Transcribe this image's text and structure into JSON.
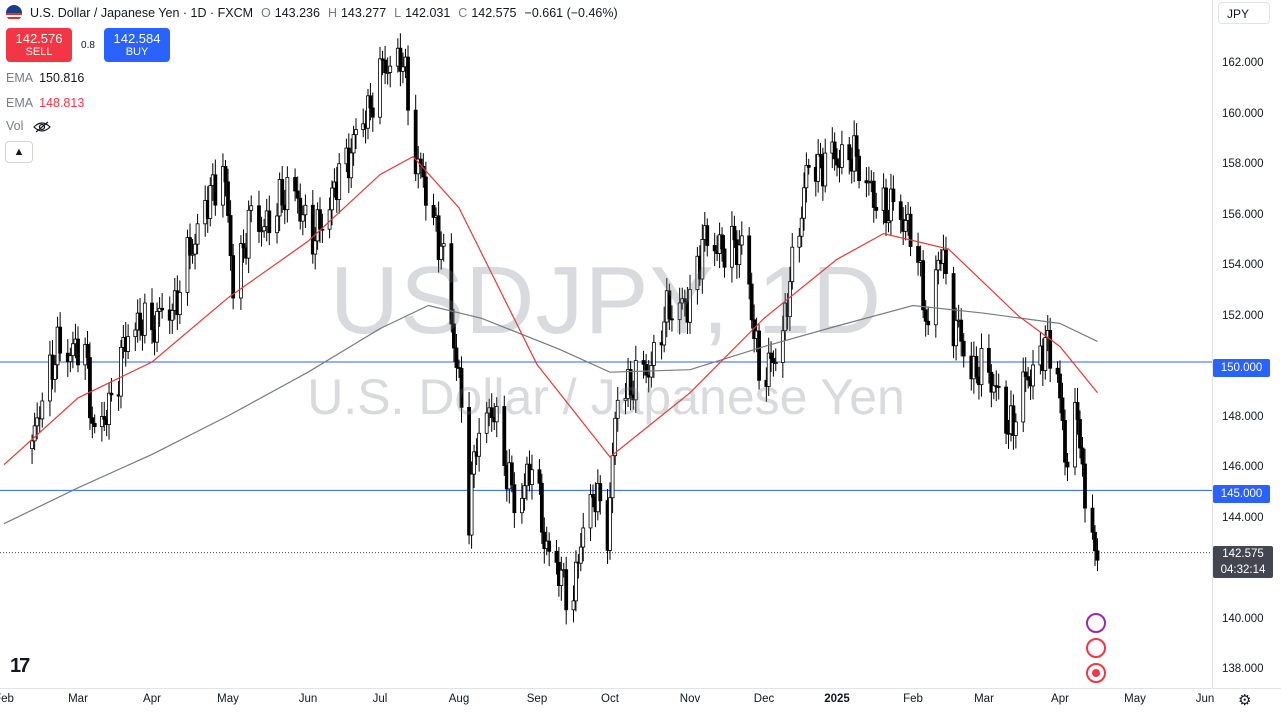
{
  "header": {
    "symbol": "U.S. Dollar / Japanese Yen · 1D · FXCM",
    "open_label": "O",
    "open": "143.236",
    "high_label": "H",
    "high": "143.277",
    "low_label": "L",
    "low": "142.031",
    "close_label": "C",
    "close": "142.575",
    "change": "−0.661 (−0.46%)"
  },
  "trade": {
    "sell_price": "142.576",
    "sell_label": "SELL",
    "buy_price": "142.584",
    "buy_label": "BUY",
    "spread": "0.8"
  },
  "indicators": [
    {
      "name": "EMA",
      "value": "150.816",
      "color": "#131722"
    },
    {
      "name": "EMA",
      "value": "148.813",
      "color": "#f23645"
    },
    {
      "name": "Vol",
      "value": ""
    }
  ],
  "currency": "JPY",
  "watermark": {
    "line1": "USDJPY, 1D",
    "line2": "U.S. Dollar / Japanese Yen"
  },
  "price_tags": {
    "hline1": "150.000",
    "hline2": "145.000",
    "last_price": "142.575",
    "countdown": "04:32:14"
  },
  "chart_data": {
    "type": "candlestick",
    "title": "USDJPY, 1D",
    "y_ticks": [
      "162.000",
      "160.000",
      "158.000",
      "156.000",
      "154.000",
      "152.000",
      "148.000",
      "146.000",
      "144.000",
      "140.000",
      "138.000"
    ],
    "x_ticks": [
      "Feb",
      "Mar",
      "Apr",
      "May",
      "Jun",
      "Jul",
      "Aug",
      "Sep",
      "Oct",
      "Nov",
      "Dec",
      "2025",
      "Feb",
      "Mar",
      "Apr",
      "May",
      "Jun"
    ],
    "ylim": [
      137.3,
      164.1
    ],
    "horizontal_lines": [
      150.0,
      145.0
    ],
    "last_price": 142.575,
    "price_path": [
      {
        "x": "2024-02-12",
        "y": 146.6
      },
      {
        "x": "2024-02-17",
        "y": 149.2
      },
      {
        "x": "2024-02-22",
        "y": 150.4
      },
      {
        "x": "2024-02-28",
        "y": 150.5
      },
      {
        "x": "2024-03-04",
        "y": 150.4
      },
      {
        "x": "2024-03-08",
        "y": 147.0
      },
      {
        "x": "2024-03-12",
        "y": 147.8
      },
      {
        "x": "2024-03-18",
        "y": 149.5
      },
      {
        "x": "2024-03-22",
        "y": 151.3
      },
      {
        "x": "2024-04-01",
        "y": 151.5
      },
      {
        "x": "2024-04-10",
        "y": 152.2
      },
      {
        "x": "2024-04-17",
        "y": 154.6
      },
      {
        "x": "2024-04-29",
        "y": 157.8
      },
      {
        "x": "2024-05-03",
        "y": 153.0
      },
      {
        "x": "2024-05-10",
        "y": 155.6
      },
      {
        "x": "2024-05-17",
        "y": 155.3
      },
      {
        "x": "2024-05-24",
        "y": 156.9
      },
      {
        "x": "2024-06-04",
        "y": 154.8
      },
      {
        "x": "2024-06-14",
        "y": 157.2
      },
      {
        "x": "2024-06-26",
        "y": 159.8
      },
      {
        "x": "2024-07-03",
        "y": 161.6
      },
      {
        "x": "2024-07-10",
        "y": 161.7
      },
      {
        "x": "2024-07-15",
        "y": 158.0
      },
      {
        "x": "2024-07-25",
        "y": 154.5
      },
      {
        "x": "2024-08-01",
        "y": 149.4
      },
      {
        "x": "2024-08-05",
        "y": 143.9
      },
      {
        "x": "2024-08-08",
        "y": 147.2
      },
      {
        "x": "2024-08-15",
        "y": 148.1
      },
      {
        "x": "2024-08-23",
        "y": 144.4
      },
      {
        "x": "2024-08-30",
        "y": 145.9
      },
      {
        "x": "2024-09-06",
        "y": 142.3
      },
      {
        "x": "2024-09-11",
        "y": 141.7
      },
      {
        "x": "2024-09-16",
        "y": 140.6
      },
      {
        "x": "2024-09-20",
        "y": 143.9
      },
      {
        "x": "2024-09-25",
        "y": 144.8
      },
      {
        "x": "2024-09-30",
        "y": 143.5
      },
      {
        "x": "2024-10-04",
        "y": 148.7
      },
      {
        "x": "2024-10-10",
        "y": 149.2
      },
      {
        "x": "2024-10-17",
        "y": 149.9
      },
      {
        "x": "2024-10-24",
        "y": 152.2
      },
      {
        "x": "2024-10-31",
        "y": 152.1
      },
      {
        "x": "2024-11-06",
        "y": 154.6
      },
      {
        "x": "2024-11-12",
        "y": 154.6
      },
      {
        "x": "2024-11-15",
        "y": 154.3
      },
      {
        "x": "2024-11-22",
        "y": 154.7
      },
      {
        "x": "2024-11-29",
        "y": 149.8
      },
      {
        "x": "2024-12-03",
        "y": 149.6
      },
      {
        "x": "2024-12-09",
        "y": 151.2
      },
      {
        "x": "2024-12-13",
        "y": 153.6
      },
      {
        "x": "2024-12-19",
        "y": 157.3
      },
      {
        "x": "2024-12-27",
        "y": 157.9
      },
      {
        "x": "2025-01-07",
        "y": 158.0
      },
      {
        "x": "2025-01-10",
        "y": 157.8
      },
      {
        "x": "2025-01-17",
        "y": 156.1
      },
      {
        "x": "2025-01-24",
        "y": 156.0
      },
      {
        "x": "2025-01-31",
        "y": 155.2
      },
      {
        "x": "2025-02-05",
        "y": 152.6
      },
      {
        "x": "2025-02-07",
        "y": 151.4
      },
      {
        "x": "2025-02-12",
        "y": 154.4
      },
      {
        "x": "2025-02-17",
        "y": 151.6
      },
      {
        "x": "2025-02-24",
        "y": 149.7
      },
      {
        "x": "2025-03-04",
        "y": 149.5
      },
      {
        "x": "2025-03-11",
        "y": 147.3
      },
      {
        "x": "2025-03-18",
        "y": 149.2
      },
      {
        "x": "2025-03-26",
        "y": 150.6
      },
      {
        "x": "2025-03-31",
        "y": 149.9
      },
      {
        "x": "2025-04-03",
        "y": 146.0
      },
      {
        "x": "2025-04-07",
        "y": 147.8
      },
      {
        "x": "2025-04-09",
        "y": 147.6
      },
      {
        "x": "2025-04-11",
        "y": 143.8
      },
      {
        "x": "2025-04-14",
        "y": 143.3
      },
      {
        "x": "2025-04-16",
        "y": 142.6
      }
    ],
    "ema_200": [
      {
        "x": "2024-02-01",
        "y": 143.7
      },
      {
        "x": "2024-03-01",
        "y": 145.1
      },
      {
        "x": "2024-04-01",
        "y": 146.4
      },
      {
        "x": "2024-05-01",
        "y": 147.9
      },
      {
        "x": "2024-06-01",
        "y": 149.6
      },
      {
        "x": "2024-07-01",
        "y": 151.3
      },
      {
        "x": "2024-07-20",
        "y": 152.2
      },
      {
        "x": "2024-08-10",
        "y": 151.7
      },
      {
        "x": "2024-09-10",
        "y": 150.5
      },
      {
        "x": "2024-10-01",
        "y": 149.6
      },
      {
        "x": "2024-11-01",
        "y": 149.7
      },
      {
        "x": "2024-12-01",
        "y": 150.6
      },
      {
        "x": "2025-01-01",
        "y": 151.4
      },
      {
        "x": "2025-02-01",
        "y": 152.2
      },
      {
        "x": "2025-03-01",
        "y": 151.9
      },
      {
        "x": "2025-04-01",
        "y": 151.5
      },
      {
        "x": "2025-04-16",
        "y": 150.8
      }
    ],
    "ema_50": [
      {
        "x": "2024-02-01",
        "y": 146.0
      },
      {
        "x": "2024-03-01",
        "y": 148.6
      },
      {
        "x": "2024-04-01",
        "y": 150.0
      },
      {
        "x": "2024-05-01",
        "y": 152.5
      },
      {
        "x": "2024-06-01",
        "y": 154.7
      },
      {
        "x": "2024-07-01",
        "y": 157.3
      },
      {
        "x": "2024-07-14",
        "y": 158.0
      },
      {
        "x": "2024-08-01",
        "y": 156.0
      },
      {
        "x": "2024-09-01",
        "y": 149.9
      },
      {
        "x": "2024-10-01",
        "y": 146.3
      },
      {
        "x": "2024-11-01",
        "y": 148.8
      },
      {
        "x": "2024-12-01",
        "y": 151.7
      },
      {
        "x": "2025-01-01",
        "y": 154.0
      },
      {
        "x": "2025-01-20",
        "y": 155.0
      },
      {
        "x": "2025-02-15",
        "y": 154.4
      },
      {
        "x": "2025-03-15",
        "y": 151.8
      },
      {
        "x": "2025-04-01",
        "y": 150.6
      },
      {
        "x": "2025-04-16",
        "y": 148.8
      }
    ]
  }
}
